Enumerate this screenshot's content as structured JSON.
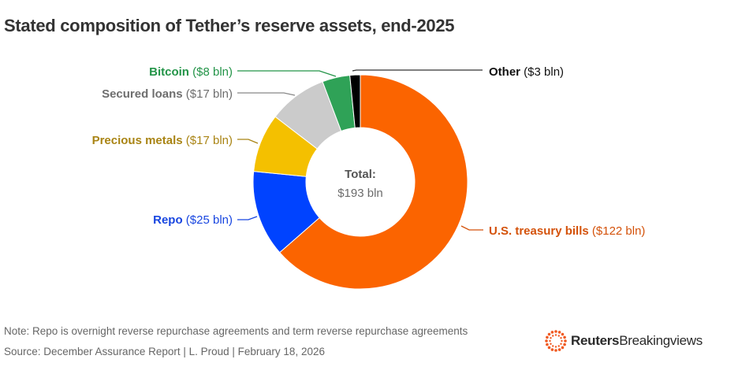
{
  "title": "Stated composition of Tether’s reserve assets, end-2025",
  "note": "Note: Repo is overnight reverse repurchase agreements and term reverse repurchase agreements",
  "source": "Source: December Assurance Report | L. Proud | February 18, 2026",
  "logo": {
    "brand": "Reuters",
    "product": "Breakingviews",
    "accent_color": "#f05a22"
  },
  "chart_data": {
    "type": "pie",
    "variant": "donut",
    "title": "Stated composition of Tether’s reserve assets, end-2025",
    "unit": "$ bln",
    "center_label": {
      "title": "Total:",
      "value": "$193 bln"
    },
    "slices": [
      {
        "name": "U.S. treasury bills",
        "value": 122,
        "value_label": "($122 bln)",
        "color": "#fb6400",
        "label_color": "#d4520a"
      },
      {
        "name": "Repo",
        "value": 25,
        "value_label": "($25 bln)",
        "color": "#0043ff",
        "label_color": "#1846e0"
      },
      {
        "name": "Precious metals",
        "value": 17,
        "value_label": "($17 bln)",
        "color": "#f4c000",
        "label_color": "#a98414"
      },
      {
        "name": "Secured loans",
        "value": 17,
        "value_label": "($17 bln)",
        "color": "#cbcbcb",
        "label_color": "#6e6e6e"
      },
      {
        "name": "Bitcoin",
        "value": 8,
        "value_label": "($8 bln)",
        "color": "#2fa257",
        "label_color": "#239448"
      },
      {
        "name": "Other",
        "value": 3,
        "value_label": "($3 bln)",
        "color": "#000000",
        "label_color": "#111111"
      }
    ],
    "start_angle": "12 o'clock",
    "direction": "clockwise"
  }
}
